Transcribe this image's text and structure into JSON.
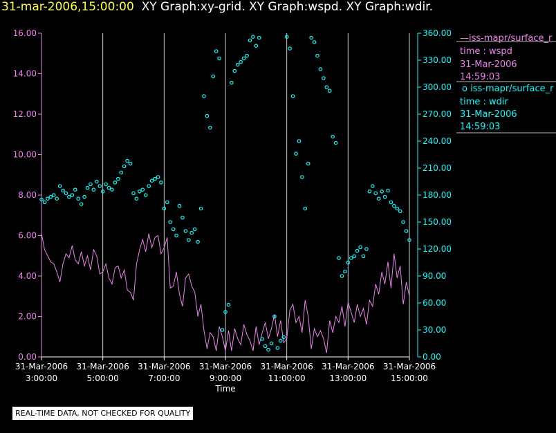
{
  "header": {
    "timestamp": "31-mar-2006,15:00:00",
    "graphs": "XY Graph:xy-grid.  XY Graph:wspd.  XY Graph:wdir."
  },
  "footer": {
    "disclaimer": "REAL-TIME DATA, NOT CHECKED FOR QUALITY"
  },
  "legend": [
    {
      "marker": "—",
      "source": "iss-mapr/surface_r",
      "var_label": "time : wspd",
      "date": "31-Mar-2006",
      "time": "14:59:03",
      "color": "#ee82ee"
    },
    {
      "marker": "o",
      "source": "iss-mapr/surface_r",
      "var_label": "time : wdir",
      "date": "31-Mar-2006",
      "time": "14:59:03",
      "color": "#00ffff"
    }
  ],
  "chart_data": {
    "type": "line",
    "xlabel": "Time",
    "x_ticks": [
      {
        "date": "31-Mar-2006",
        "time": "3:00:00"
      },
      {
        "date": "31-Mar-2006",
        "time": "5:00:00"
      },
      {
        "date": "31-Mar-2006",
        "time": "7:00:00"
      },
      {
        "date": "31-Mar-2006",
        "time": "9:00:00"
      },
      {
        "date": "31-Mar-2006",
        "time": "11:00:00"
      },
      {
        "date": "31-Mar-2006",
        "time": "13:00:00"
      },
      {
        "date": "31-Mar-2006",
        "time": "15:00:00"
      }
    ],
    "xlim_hours": [
      3.0,
      15.0
    ],
    "grid": "vertical lines at each x tick",
    "left_axis": {
      "ylim": [
        0,
        16
      ],
      "ticks": [
        "0.00",
        "2.00",
        "4.00",
        "6.00",
        "8.00",
        "10.00",
        "12.00",
        "14.00",
        "16.00"
      ],
      "color": "#ee82ee"
    },
    "right_axis": {
      "ylim": [
        0,
        360
      ],
      "ticks": [
        "0.00",
        "30.00",
        "60.00",
        "90.00",
        "120.00",
        "150.00",
        "180.00",
        "210.00",
        "240.00",
        "270.00",
        "300.00",
        "330.00",
        "360.00"
      ],
      "color": "#00ffff"
    },
    "series": [
      {
        "axis": "left",
        "style": "line",
        "color": "#ee82ee",
        "points": [
          [
            3.0,
            6.1
          ],
          [
            3.1,
            5.3
          ],
          [
            3.2,
            5.0
          ],
          [
            3.3,
            4.7
          ],
          [
            3.4,
            4.6
          ],
          [
            3.5,
            4.2
          ],
          [
            3.6,
            3.7
          ],
          [
            3.7,
            4.6
          ],
          [
            3.8,
            5.1
          ],
          [
            3.9,
            4.9
          ],
          [
            4.0,
            5.5
          ],
          [
            4.1,
            4.8
          ],
          [
            4.2,
            4.6
          ],
          [
            4.3,
            5.2
          ],
          [
            4.4,
            4.5
          ],
          [
            4.5,
            5.0
          ],
          [
            4.6,
            4.3
          ],
          [
            4.7,
            5.3
          ],
          [
            4.8,
            5.0
          ],
          [
            4.9,
            4.1
          ],
          [
            5.0,
            4.2
          ],
          [
            5.1,
            4.6
          ],
          [
            5.2,
            3.9
          ],
          [
            5.3,
            3.6
          ],
          [
            5.4,
            4.4
          ],
          [
            5.5,
            4.5
          ],
          [
            5.6,
            3.9
          ],
          [
            5.7,
            4.3
          ],
          [
            5.8,
            3.3
          ],
          [
            5.9,
            3.2
          ],
          [
            6.0,
            2.8
          ],
          [
            6.1,
            4.6
          ],
          [
            6.2,
            5.3
          ],
          [
            6.3,
            5.8
          ],
          [
            6.4,
            5.2
          ],
          [
            6.5,
            6.1
          ],
          [
            6.6,
            5.4
          ],
          [
            6.7,
            5.9
          ],
          [
            6.8,
            6.0
          ],
          [
            6.9,
            5.1
          ],
          [
            7.0,
            5.4
          ],
          [
            7.1,
            5.9
          ],
          [
            7.2,
            3.4
          ],
          [
            7.3,
            3.5
          ],
          [
            7.4,
            4.2
          ],
          [
            7.5,
            3.1
          ],
          [
            7.6,
            2.5
          ],
          [
            7.7,
            3.9
          ],
          [
            7.8,
            4.1
          ],
          [
            7.9,
            3.5
          ],
          [
            8.0,
            3.2
          ],
          [
            8.1,
            2.0
          ],
          [
            8.2,
            2.6
          ],
          [
            8.3,
            1.3
          ],
          [
            8.4,
            0.4
          ],
          [
            8.5,
            1.2
          ],
          [
            8.6,
            1.0
          ],
          [
            8.7,
            0.3
          ],
          [
            8.8,
            1.5
          ],
          [
            8.9,
            1.0
          ],
          [
            9.0,
            0.3
          ],
          [
            9.1,
            1.3
          ],
          [
            9.2,
            0.3
          ],
          [
            9.3,
            1.4
          ],
          [
            9.4,
            0.9
          ],
          [
            9.5,
            0.6
          ],
          [
            9.6,
            1.6
          ],
          [
            9.7,
            1.1
          ],
          [
            9.8,
            0.8
          ],
          [
            9.9,
            0.3
          ],
          [
            10.0,
            1.5
          ],
          [
            10.1,
            0.6
          ],
          [
            10.2,
            1.2
          ],
          [
            10.3,
            1.7
          ],
          [
            10.4,
            0.9
          ],
          [
            10.5,
            1.4
          ],
          [
            10.6,
            2.1
          ],
          [
            10.7,
            1.0
          ],
          [
            10.8,
            1.8
          ],
          [
            10.9,
            0.7
          ],
          [
            11.0,
            0.9
          ],
          [
            11.1,
            2.3
          ],
          [
            11.2,
            2.6
          ],
          [
            11.3,
            1.7
          ],
          [
            11.4,
            2.0
          ],
          [
            11.5,
            1.2
          ],
          [
            11.6,
            2.8
          ],
          [
            11.7,
            2.0
          ],
          [
            11.8,
            0.4
          ],
          [
            11.9,
            1.4
          ],
          [
            12.0,
            1.0
          ],
          [
            12.1,
            1.3
          ],
          [
            12.2,
            0.9
          ],
          [
            12.3,
            0.2
          ],
          [
            12.4,
            1.8
          ],
          [
            12.5,
            1.2
          ],
          [
            12.6,
            2.0
          ],
          [
            12.7,
            1.7
          ],
          [
            12.8,
            2.5
          ],
          [
            12.9,
            1.5
          ],
          [
            13.0,
            2.7
          ],
          [
            13.1,
            2.2
          ],
          [
            13.2,
            1.7
          ],
          [
            13.3,
            2.6
          ],
          [
            13.4,
            2.0
          ],
          [
            13.5,
            2.4
          ],
          [
            13.6,
            1.6
          ],
          [
            13.7,
            2.8
          ],
          [
            13.8,
            2.5
          ],
          [
            13.9,
            3.6
          ],
          [
            14.0,
            3.1
          ],
          [
            14.1,
            4.2
          ],
          [
            14.2,
            3.6
          ],
          [
            14.3,
            4.7
          ],
          [
            14.4,
            3.4
          ],
          [
            14.5,
            5.1
          ],
          [
            14.6,
            3.9
          ],
          [
            14.7,
            4.5
          ],
          [
            14.8,
            2.6
          ],
          [
            14.9,
            3.7
          ],
          [
            15.0,
            3.0
          ]
        ]
      },
      {
        "axis": "right",
        "style": "circles",
        "color": "#00ffff",
        "points": [
          [
            3.0,
            175
          ],
          [
            3.1,
            172
          ],
          [
            3.2,
            176
          ],
          [
            3.3,
            178
          ],
          [
            3.4,
            180
          ],
          [
            3.5,
            176
          ],
          [
            3.6,
            190
          ],
          [
            3.7,
            185
          ],
          [
            3.8,
            182
          ],
          [
            3.9,
            178
          ],
          [
            4.0,
            180
          ],
          [
            4.1,
            186
          ],
          [
            4.2,
            176
          ],
          [
            4.3,
            170
          ],
          [
            4.4,
            178
          ],
          [
            4.5,
            188
          ],
          [
            4.6,
            192
          ],
          [
            4.7,
            186
          ],
          [
            4.8,
            195
          ],
          [
            4.9,
            190
          ],
          [
            5.0,
            184
          ],
          [
            5.1,
            192
          ],
          [
            5.2,
            188
          ],
          [
            5.3,
            186
          ],
          [
            5.4,
            194
          ],
          [
            5.5,
            198
          ],
          [
            5.6,
            205
          ],
          [
            5.7,
            212
          ],
          [
            5.8,
            218
          ],
          [
            5.9,
            215
          ],
          [
            6.0,
            182
          ],
          [
            6.1,
            176
          ],
          [
            6.2,
            184
          ],
          [
            6.3,
            186
          ],
          [
            6.4,
            180
          ],
          [
            6.5,
            190
          ],
          [
            6.6,
            196
          ],
          [
            6.7,
            198
          ],
          [
            6.8,
            200
          ],
          [
            6.9,
            194
          ],
          [
            7.0,
            165
          ],
          [
            7.1,
            172
          ],
          [
            7.2,
            150
          ],
          [
            7.3,
            142
          ],
          [
            7.4,
            135
          ],
          [
            7.5,
            168
          ],
          [
            7.6,
            155
          ],
          [
            7.7,
            140
          ],
          [
            7.8,
            130
          ],
          [
            7.9,
            138
          ],
          [
            8.0,
            142
          ],
          [
            8.1,
            128
          ],
          [
            8.2,
            165
          ],
          [
            8.3,
            290
          ],
          [
            8.4,
            268
          ],
          [
            8.5,
            255
          ],
          [
            8.6,
            312
          ],
          [
            8.7,
            340
          ],
          [
            8.8,
            332
          ],
          [
            8.9,
            30
          ],
          [
            9.0,
            50
          ],
          [
            9.1,
            58
          ],
          [
            9.2,
            305
          ],
          [
            9.3,
            318
          ],
          [
            9.4,
            325
          ],
          [
            9.5,
            328
          ],
          [
            9.6,
            332
          ],
          [
            9.7,
            335
          ],
          [
            9.8,
            352
          ],
          [
            9.9,
            356
          ],
          [
            10.0,
            346
          ],
          [
            10.1,
            355
          ],
          [
            10.2,
            20
          ],
          [
            10.3,
            12
          ],
          [
            10.4,
            8
          ],
          [
            10.5,
            15
          ],
          [
            10.6,
            45
          ],
          [
            10.7,
            10
          ],
          [
            10.8,
            18
          ],
          [
            10.9,
            22
          ],
          [
            11.0,
            356
          ],
          [
            11.1,
            343
          ],
          [
            11.2,
            290
          ],
          [
            11.3,
            226
          ],
          [
            11.4,
            240
          ],
          [
            11.5,
            200
          ],
          [
            11.6,
            165
          ],
          [
            11.7,
            215
          ],
          [
            11.8,
            355
          ],
          [
            11.9,
            350
          ],
          [
            12.0,
            335
          ],
          [
            12.1,
            320
          ],
          [
            12.2,
            310
          ],
          [
            12.3,
            300
          ],
          [
            12.4,
            296
          ],
          [
            12.5,
            245
          ],
          [
            12.6,
            238
          ],
          [
            12.7,
            110
          ],
          [
            12.8,
            90
          ],
          [
            12.9,
            95
          ],
          [
            13.0,
            105
          ],
          [
            13.1,
            110
          ],
          [
            13.2,
            112
          ],
          [
            13.3,
            118
          ],
          [
            13.4,
            122
          ],
          [
            13.5,
            112
          ],
          [
            13.6,
            120
          ],
          [
            13.7,
            184
          ],
          [
            13.8,
            190
          ],
          [
            13.9,
            182
          ],
          [
            14.0,
            176
          ],
          [
            14.1,
            184
          ],
          [
            14.2,
            178
          ],
          [
            14.3,
            185
          ],
          [
            14.4,
            172
          ],
          [
            14.5,
            168
          ],
          [
            14.6,
            165
          ],
          [
            14.7,
            162
          ],
          [
            14.8,
            150
          ],
          [
            14.9,
            140
          ],
          [
            15.0,
            130
          ]
        ]
      }
    ]
  }
}
